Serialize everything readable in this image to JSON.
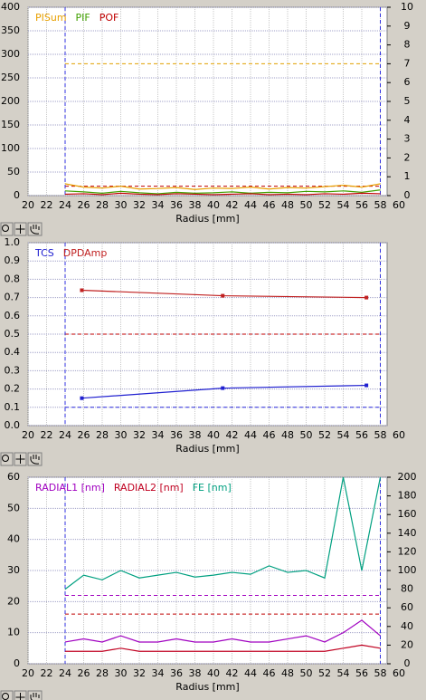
{
  "chart_data": [
    {
      "type": "line",
      "xlabel": "Radius [mm]",
      "x": [
        24,
        26,
        28,
        30,
        32,
        34,
        36,
        38,
        40,
        42,
        44,
        46,
        48,
        50,
        52,
        54,
        56,
        58
      ],
      "xlim": [
        20,
        60
      ],
      "xticks": [
        20,
        22,
        24,
        26,
        28,
        30,
        32,
        34,
        36,
        38,
        40,
        42,
        44,
        46,
        48,
        50,
        52,
        54,
        56,
        58,
        60
      ],
      "ylim": [
        0,
        400
      ],
      "yticks": [
        0,
        50,
        100,
        150,
        200,
        250,
        300,
        350,
        400
      ],
      "y2lim": [
        0,
        10
      ],
      "y2ticks": [
        0,
        1,
        2,
        3,
        4,
        5,
        6,
        7,
        8,
        9,
        10
      ],
      "grid": true,
      "markers": false,
      "vlines": [
        {
          "value": 24,
          "color": "#3030e0"
        },
        {
          "value": 58,
          "color": "#3030e0"
        }
      ],
      "hlines": [
        {
          "value": 280,
          "color": "#e0a000"
        },
        {
          "value": 20,
          "color": "#c00000"
        }
      ],
      "series": [
        {
          "name": "PISum",
          "color": "#e8a000",
          "values": [
            25,
            18,
            16,
            20,
            14,
            15,
            17,
            13,
            16,
            15,
            18,
            14,
            17,
            16,
            19,
            22,
            18,
            25
          ]
        },
        {
          "name": "PIF",
          "color": "#40a000",
          "values": [
            10,
            8,
            5,
            9,
            6,
            4,
            7,
            5,
            6,
            8,
            5,
            7,
            6,
            9,
            8,
            10,
            7,
            12
          ]
        },
        {
          "name": "POF",
          "color": "#c00000",
          "values": [
            3,
            4,
            2,
            5,
            3,
            2,
            4,
            3,
            2,
            3,
            4,
            2,
            3,
            2,
            4,
            3,
            5,
            4
          ]
        }
      ]
    },
    {
      "type": "line",
      "xlabel": "Radius [mm]",
      "x": [
        25.8,
        41,
        56.5
      ],
      "xlim": [
        20,
        60
      ],
      "xticks": [
        20,
        22,
        24,
        26,
        28,
        30,
        32,
        34,
        36,
        38,
        40,
        42,
        44,
        46,
        48,
        50,
        52,
        54,
        56,
        58,
        60
      ],
      "ylim": [
        0,
        1
      ],
      "yticks": [
        {
          "value": 0,
          "label": "0.0"
        },
        0.1,
        0.2,
        0.3,
        0.4,
        0.5,
        0.6,
        0.7,
        0.8,
        0.9,
        {
          "value": 1,
          "label": "1.0"
        }
      ],
      "grid": true,
      "markers": true,
      "vlines": [
        {
          "value": 24,
          "color": "#3030e0"
        },
        {
          "value": 58,
          "color": "#3030e0"
        }
      ],
      "hlines": [
        {
          "value": 0.5,
          "color": "#c00000"
        },
        {
          "value": 0.1,
          "color": "#3030e0"
        }
      ],
      "series": [
        {
          "name": "TCS",
          "color": "#2020d0",
          "values": [
            0.15,
            0.205,
            0.22
          ]
        },
        {
          "name": "DPDAmp",
          "color": "#c02020",
          "values": [
            0.74,
            0.71,
            0.7
          ]
        }
      ]
    },
    {
      "type": "line",
      "xlabel": "Radius [mm]",
      "x": [
        24,
        26,
        28,
        30,
        32,
        34,
        36,
        38,
        40,
        42,
        44,
        46,
        48,
        50,
        52,
        54,
        56,
        58
      ],
      "xlim": [
        20,
        60
      ],
      "xticks": [
        20,
        22,
        24,
        26,
        28,
        30,
        32,
        34,
        36,
        38,
        40,
        42,
        44,
        46,
        48,
        50,
        52,
        54,
        56,
        58,
        60
      ],
      "ylim": [
        0,
        60
      ],
      "yticks": [
        0,
        10,
        20,
        30,
        40,
        50,
        60
      ],
      "y2lim": [
        0,
        200
      ],
      "y2ticks": [
        0,
        20,
        40,
        60,
        80,
        100,
        120,
        140,
        160,
        180,
        200
      ],
      "grid": true,
      "markers": false,
      "vlines": [
        {
          "value": 24,
          "color": "#3030e0"
        },
        {
          "value": 58,
          "color": "#3030e0"
        }
      ],
      "hlines": [
        {
          "value": 22,
          "color": "#a000c0"
        },
        {
          "value": 16,
          "color": "#c00000"
        }
      ],
      "series": [
        {
          "name": "RADIAL1 [nm]",
          "color": "#a000c0",
          "values": [
            7,
            8,
            7,
            9,
            7,
            7,
            8,
            7,
            7,
            8,
            7,
            7,
            8,
            9,
            7,
            10,
            14,
            9
          ]
        },
        {
          "name": "RADIAL2 [nm]",
          "color": "#c00020",
          "values": [
            4,
            4,
            4,
            5,
            4,
            4,
            4,
            4,
            4,
            4,
            4,
            4,
            4,
            4,
            4,
            5,
            6,
            5
          ]
        },
        {
          "name": "FE [nm]",
          "color": "#00a080",
          "axis": "y2",
          "values": [
            80,
            95,
            90,
            100,
            92,
            95,
            98,
            93,
            95,
            98,
            96,
            105,
            98,
            100,
            92,
            200,
            100,
            200
          ]
        }
      ]
    }
  ]
}
